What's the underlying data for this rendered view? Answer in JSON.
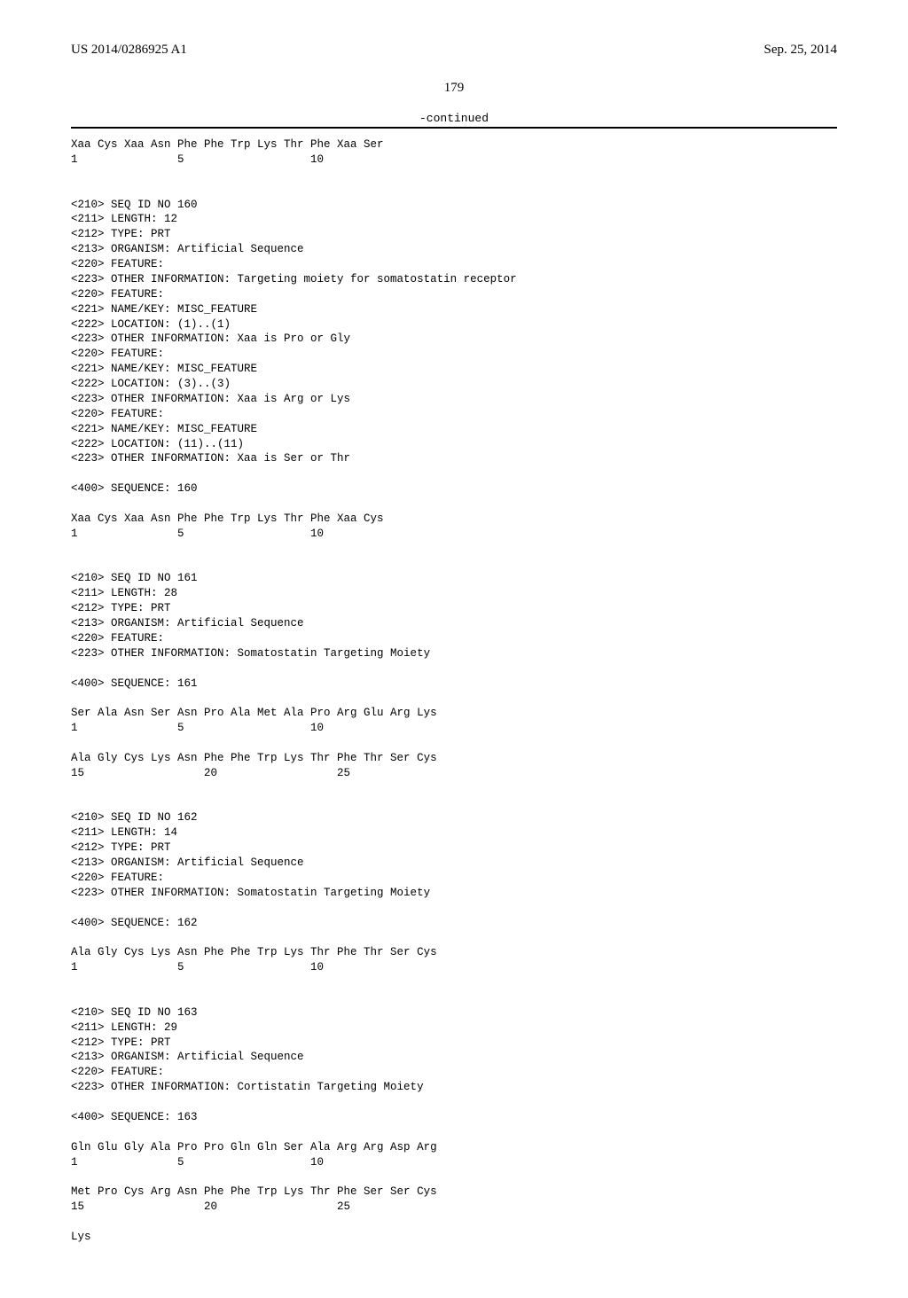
{
  "header": {
    "pubnum": "US 2014/0286925 A1",
    "date": "Sep. 25, 2014"
  },
  "pagenum": "179",
  "continued": "-continued",
  "body": "Xaa Cys Xaa Asn Phe Phe Trp Lys Thr Phe Xaa Ser\n1               5                   10\n\n\n<210> SEQ ID NO 160\n<211> LENGTH: 12\n<212> TYPE: PRT\n<213> ORGANISM: Artificial Sequence\n<220> FEATURE:\n<223> OTHER INFORMATION: Targeting moiety for somatostatin receptor\n<220> FEATURE:\n<221> NAME/KEY: MISC_FEATURE\n<222> LOCATION: (1)..(1)\n<223> OTHER INFORMATION: Xaa is Pro or Gly\n<220> FEATURE:\n<221> NAME/KEY: MISC_FEATURE\n<222> LOCATION: (3)..(3)\n<223> OTHER INFORMATION: Xaa is Arg or Lys\n<220> FEATURE:\n<221> NAME/KEY: MISC_FEATURE\n<222> LOCATION: (11)..(11)\n<223> OTHER INFORMATION: Xaa is Ser or Thr\n\n<400> SEQUENCE: 160\n\nXaa Cys Xaa Asn Phe Phe Trp Lys Thr Phe Xaa Cys\n1               5                   10\n\n\n<210> SEQ ID NO 161\n<211> LENGTH: 28\n<212> TYPE: PRT\n<213> ORGANISM: Artificial Sequence\n<220> FEATURE:\n<223> OTHER INFORMATION: Somatostatin Targeting Moiety\n\n<400> SEQUENCE: 161\n\nSer Ala Asn Ser Asn Pro Ala Met Ala Pro Arg Glu Arg Lys\n1               5                   10\n\nAla Gly Cys Lys Asn Phe Phe Trp Lys Thr Phe Thr Ser Cys\n15                  20                  25\n\n\n<210> SEQ ID NO 162\n<211> LENGTH: 14\n<212> TYPE: PRT\n<213> ORGANISM: Artificial Sequence\n<220> FEATURE:\n<223> OTHER INFORMATION: Somatostatin Targeting Moiety\n\n<400> SEQUENCE: 162\n\nAla Gly Cys Lys Asn Phe Phe Trp Lys Thr Phe Thr Ser Cys\n1               5                   10\n\n\n<210> SEQ ID NO 163\n<211> LENGTH: 29\n<212> TYPE: PRT\n<213> ORGANISM: Artificial Sequence\n<220> FEATURE:\n<223> OTHER INFORMATION: Cortistatin Targeting Moiety\n\n<400> SEQUENCE: 163\n\nGln Glu Gly Ala Pro Pro Gln Gln Ser Ala Arg Arg Asp Arg\n1               5                   10\n\nMet Pro Cys Arg Asn Phe Phe Trp Lys Thr Phe Ser Ser Cys\n15                  20                  25\n\nLys"
}
